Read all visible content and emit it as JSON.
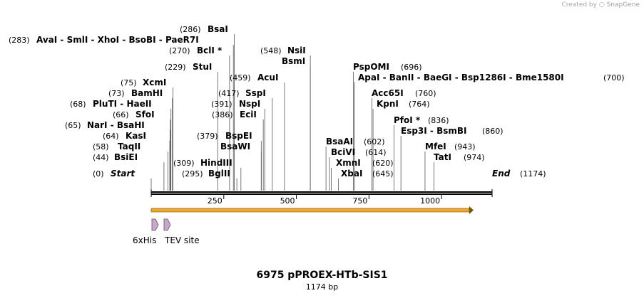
{
  "credit": {
    "prefix": "Created by",
    "brand": "SnapGene"
  },
  "map": {
    "title": "6975 pPROEX-HTb-SIS1",
    "length_label": "1174 bp",
    "length": 1174,
    "ticks": [
      {
        "pos": 250,
        "label": "250"
      },
      {
        "pos": 500,
        "label": "500"
      },
      {
        "pos": 750,
        "label": "750"
      },
      {
        "pos": 1000,
        "label": "1000"
      }
    ],
    "colors": {
      "backbone": "#000000",
      "orf_fill": "#f5a623",
      "orf_stroke": "#7a5200",
      "feature_fill": "#c8a8c8"
    },
    "sites": [
      {
        "name": "Start",
        "pos": 0,
        "label": "(0)",
        "italic": true
      },
      {
        "name": "BsiEI",
        "pos": 44,
        "label": "(44)"
      },
      {
        "name": "TaqII",
        "pos": 58,
        "label": "(58)"
      },
      {
        "name": "KasI",
        "pos": 64,
        "label": "(64)"
      },
      {
        "name": "NarI - BsaHI",
        "pos": 65,
        "label": "(65)"
      },
      {
        "name": "SfoI",
        "pos": 66,
        "label": "(66)"
      },
      {
        "name": "PluTI - HaeII",
        "pos": 68,
        "label": "(68)"
      },
      {
        "name": "BamHI",
        "pos": 73,
        "label": "(73)"
      },
      {
        "name": "XcmI",
        "pos": 75,
        "label": "(75)"
      },
      {
        "name": "StuI",
        "pos": 229,
        "label": "(229)"
      },
      {
        "name": "AvaI - SmlI - XhoI - BsoBI - PaeR7I",
        "pos": 283,
        "label": "(283)"
      },
      {
        "name": "BsaI",
        "pos": 286,
        "label": "(286)"
      },
      {
        "name": "BclI *",
        "pos": 270,
        "label": "(270)"
      },
      {
        "name": "BglII",
        "pos": 295,
        "label": "(295)"
      },
      {
        "name": "HindIII",
        "pos": 309,
        "label": "(309)"
      },
      {
        "name": "BsaWI",
        "pos": 379,
        "label": ""
      },
      {
        "name": "BspEI",
        "pos": 379,
        "label": "(379)"
      },
      {
        "name": "EciI",
        "pos": 386,
        "label": "(386)"
      },
      {
        "name": "NspI",
        "pos": 391,
        "label": "(391)"
      },
      {
        "name": "SspI",
        "pos": 417,
        "label": "(417)"
      },
      {
        "name": "AcuI",
        "pos": 459,
        "label": "(459)"
      },
      {
        "name": "NsiI",
        "pos": 548,
        "label": "(548)"
      },
      {
        "name": "BsmI",
        "pos": 548,
        "label": ""
      },
      {
        "name": "BsaAI",
        "pos": 602,
        "label": "(602)"
      },
      {
        "name": "BciVI",
        "pos": 614,
        "label": "(614)"
      },
      {
        "name": "XmnI",
        "pos": 620,
        "label": "(620)"
      },
      {
        "name": "XbaI",
        "pos": 645,
        "label": "(645)"
      },
      {
        "name": "PspOMI",
        "pos": 696,
        "label": "(696)"
      },
      {
        "name": "ApaI - BanII - BaeGI - Bsp1286I - Bme1580I",
        "pos": 700,
        "label": "(700)"
      },
      {
        "name": "Acc65I",
        "pos": 760,
        "label": "(760)"
      },
      {
        "name": "KpnI",
        "pos": 764,
        "label": "(764)"
      },
      {
        "name": "PfoI *",
        "pos": 836,
        "label": "(836)"
      },
      {
        "name": "Esp3I - BsmBI",
        "pos": 860,
        "label": "(860)"
      },
      {
        "name": "MfeI",
        "pos": 943,
        "label": "(943)"
      },
      {
        "name": "TatI",
        "pos": 974,
        "label": "(974)"
      },
      {
        "name": "End",
        "pos": 1174,
        "label": "(1174)",
        "italic": true
      }
    ],
    "features": [
      {
        "name": "6xHis",
        "start": 5,
        "end": 25
      },
      {
        "name": "TEV site",
        "start": 45,
        "end": 65
      }
    ],
    "orf": {
      "start": 0,
      "end": 1110
    }
  }
}
